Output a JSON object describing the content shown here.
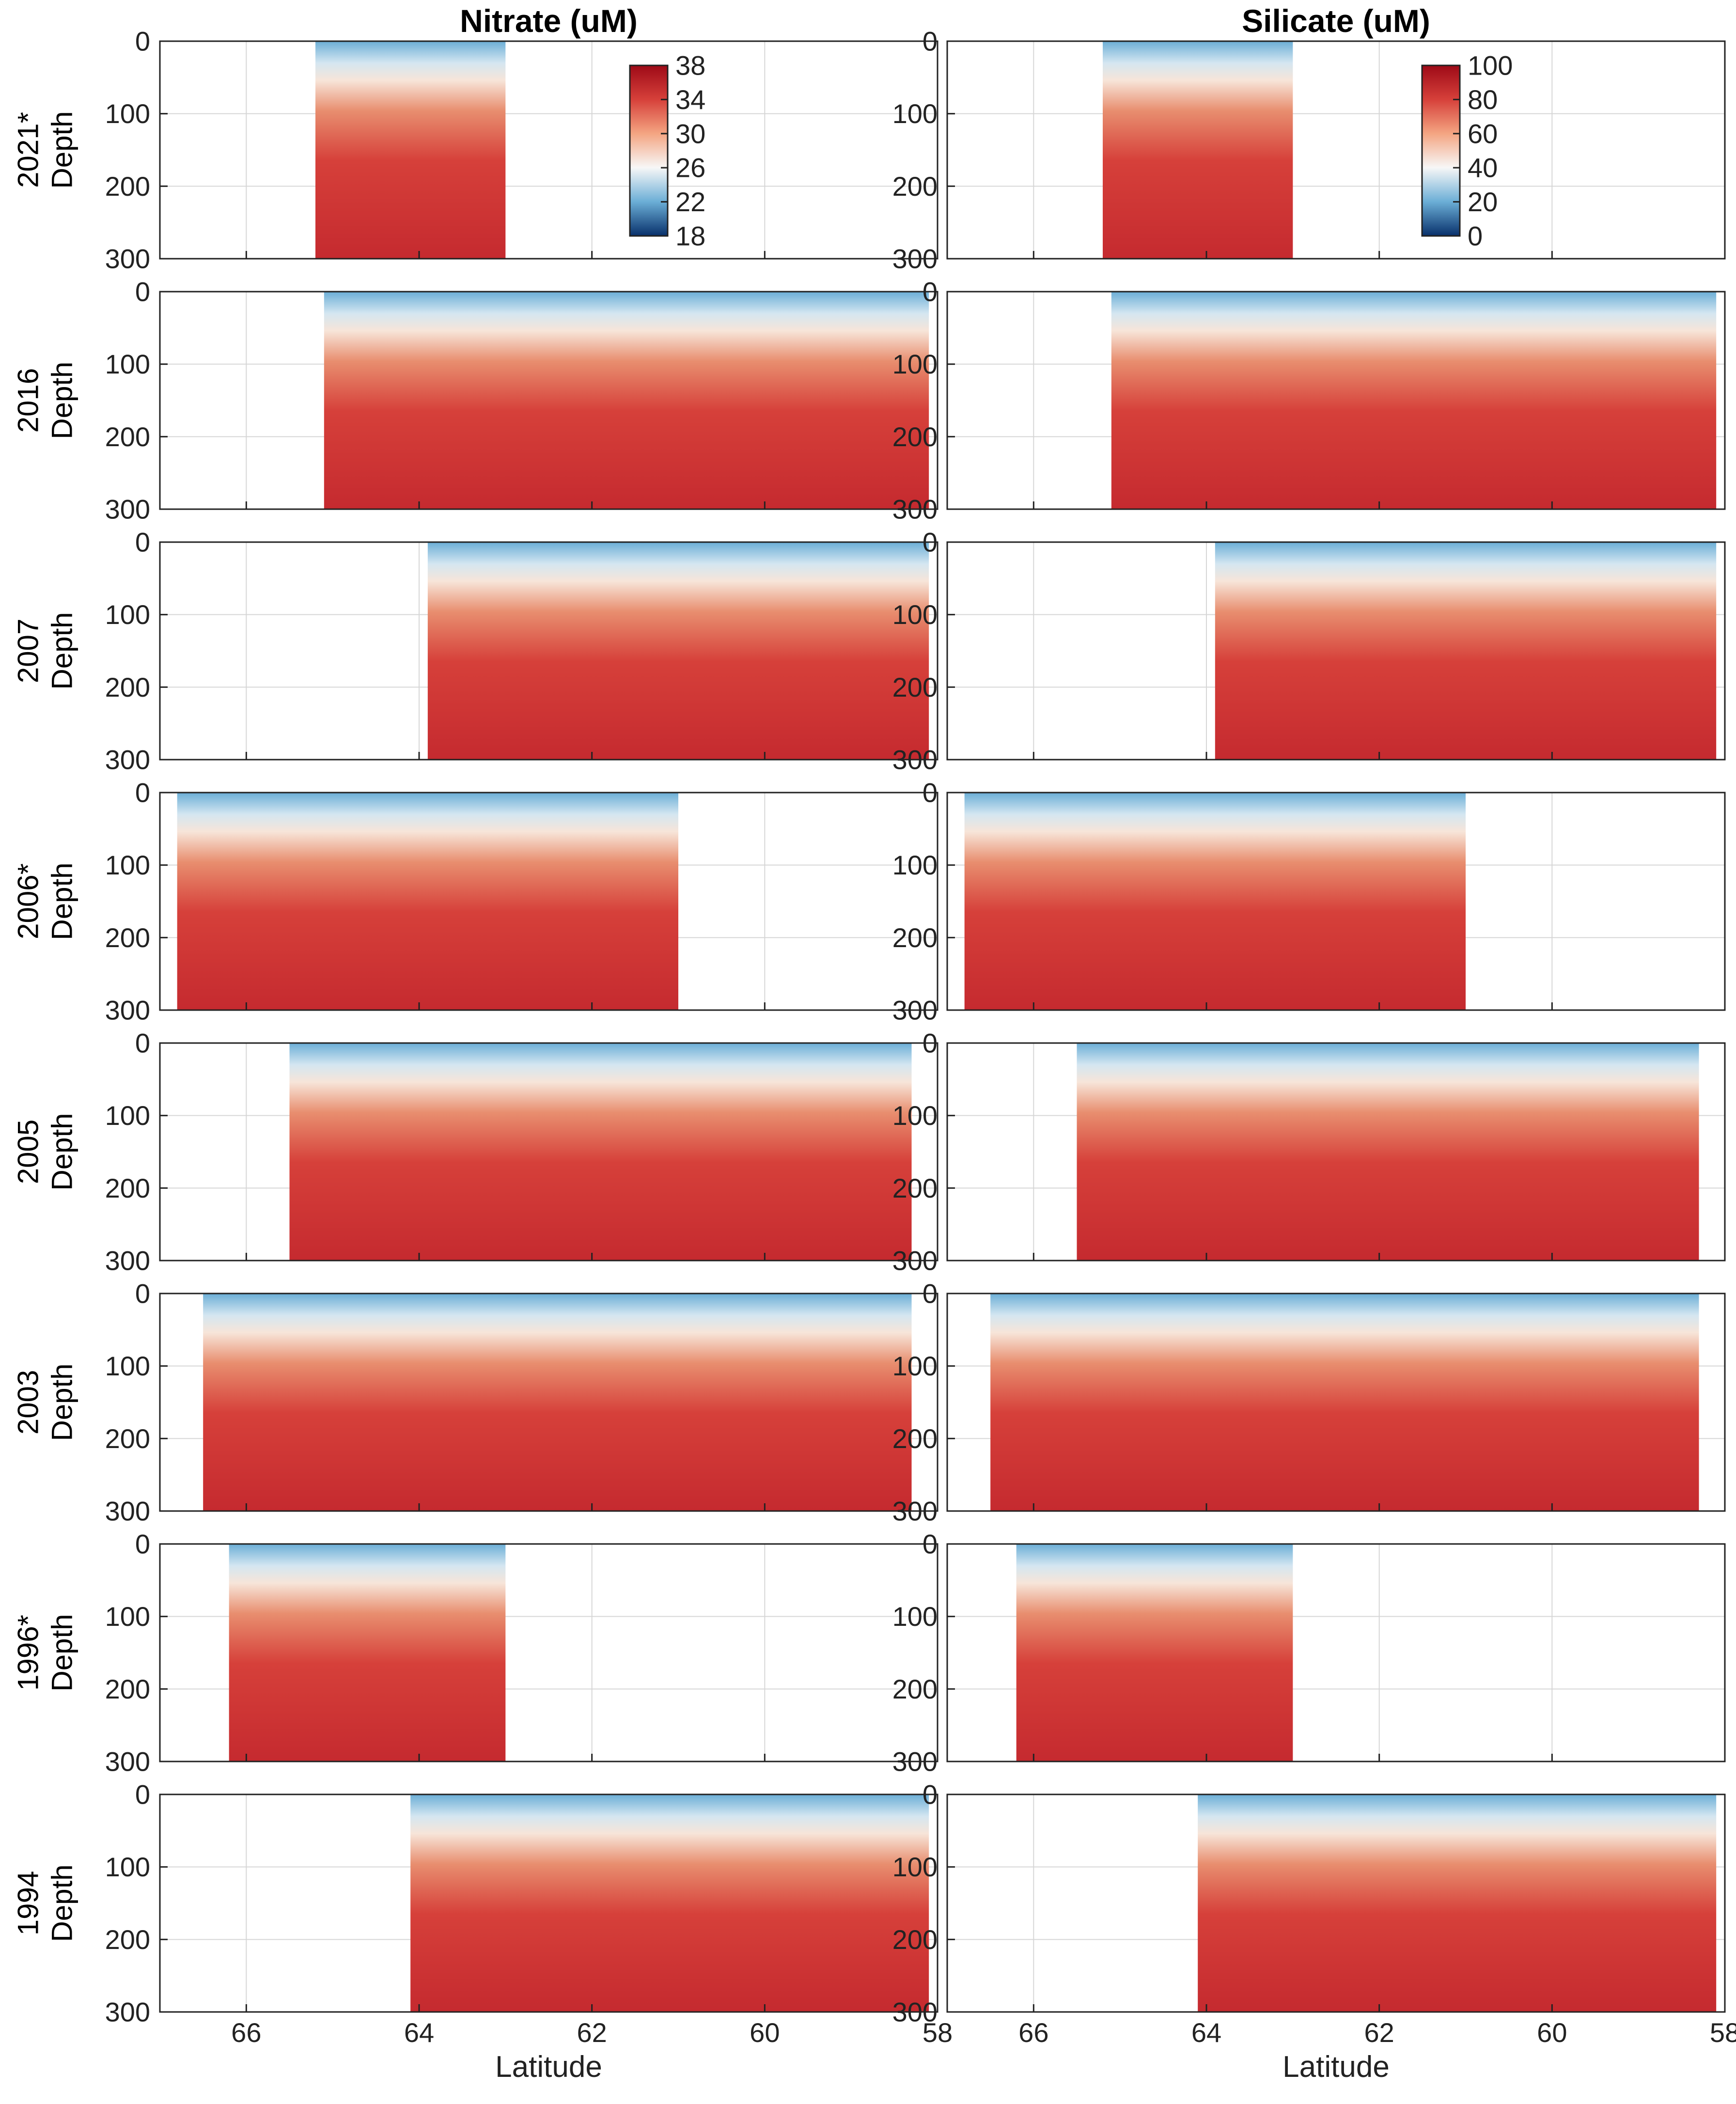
{
  "chart_data": {
    "type": "heatmap",
    "columns": [
      {
        "title": "Nitrate (uM)",
        "colorbar": {
          "ticks": [
            38,
            34,
            30,
            26,
            22,
            18
          ],
          "range": [
            18,
            38
          ]
        }
      },
      {
        "title": "Silicate (uM)",
        "colorbar": {
          "ticks": [
            100,
            80,
            60,
            40,
            20,
            0
          ],
          "range": [
            0,
            100
          ]
        }
      }
    ],
    "rows": [
      {
        "label": "2021*",
        "lat_span": [
          65.2,
          63.0
        ]
      },
      {
        "label": "2016",
        "lat_span": [
          65.1,
          58.1
        ]
      },
      {
        "label": "2007",
        "lat_span": [
          63.9,
          58.1
        ]
      },
      {
        "label": "2006*",
        "lat_span": [
          66.8,
          61.0
        ]
      },
      {
        "label": "2005",
        "lat_span": [
          65.5,
          58.3
        ]
      },
      {
        "label": "2003",
        "lat_span": [
          66.5,
          58.3
        ]
      },
      {
        "label": "1996*",
        "lat_span": [
          66.2,
          63.0
        ]
      },
      {
        "label": "1994",
        "lat_span": [
          64.1,
          58.1
        ]
      }
    ],
    "y_axis": {
      "label": "Depth",
      "ticks": [
        0,
        100,
        200,
        300
      ],
      "range": [
        0,
        300
      ],
      "reversed": true
    },
    "x_axis": {
      "label": "Latitude",
      "ticks": [
        66,
        64,
        62,
        60,
        58
      ],
      "range": [
        67,
        58
      ],
      "reversed": true
    },
    "grid": true,
    "colormap": [
      "#08519c",
      "#6baed6",
      "#f7f7f7",
      "#f4a582",
      "#d6604d",
      "#67001f"
    ]
  }
}
